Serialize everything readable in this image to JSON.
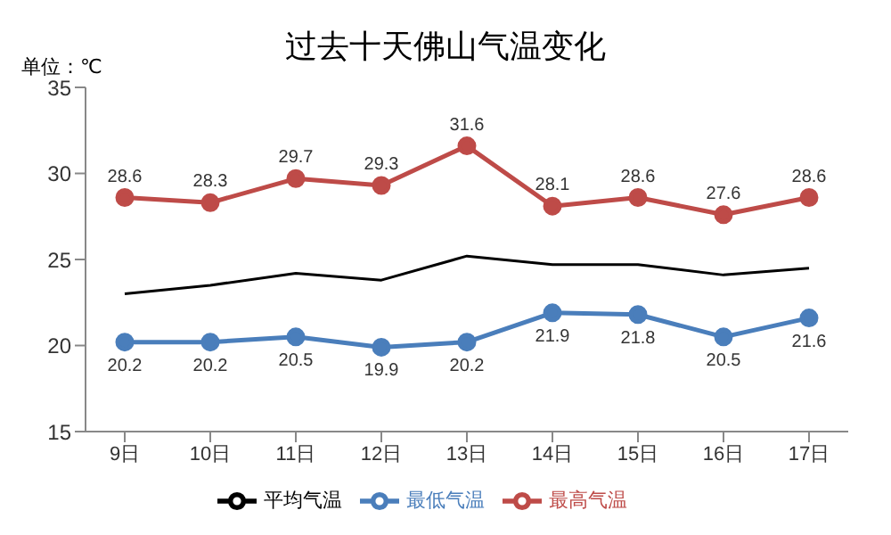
{
  "chart_data": {
    "type": "line",
    "title": "过去十天佛山气温变化",
    "annotations": [
      "单位：℃"
    ],
    "categories": [
      "9日",
      "10日",
      "11日",
      "12日",
      "13日",
      "14日",
      "15日",
      "16日",
      "17日"
    ],
    "series": [
      {
        "name": "最低气温",
        "color": "#4a7ebb",
        "marker": "circle",
        "values": [
          20.2,
          20.2,
          20.5,
          19.9,
          20.2,
          21.9,
          21.8,
          20.5,
          21.6
        ],
        "value_labels": [
          "20.2",
          "20.2",
          "20.5",
          "19.9",
          "20.2",
          "21.9",
          "21.8",
          "20.5",
          "21.6"
        ]
      },
      {
        "name": "最高气温",
        "color": "#be4b48",
        "marker": "circle",
        "values": [
          28.6,
          28.3,
          29.7,
          29.3,
          31.6,
          28.1,
          28.6,
          27.6,
          28.6
        ],
        "value_labels": [
          "28.6",
          "28.3",
          "29.7",
          "29.3",
          "31.6",
          "28.1",
          "28.6",
          "27.6",
          "28.6"
        ]
      },
      {
        "name": "平均气温",
        "color": "#000000",
        "marker": "none",
        "values": [
          23.0,
          23.5,
          24.2,
          23.8,
          25.2,
          24.7,
          24.7,
          24.1,
          24.5
        ]
      }
    ],
    "ylim": [
      15,
      35
    ],
    "yticks": [
      15,
      20,
      25,
      30,
      35
    ],
    "grid": false,
    "legend": "bottom"
  }
}
